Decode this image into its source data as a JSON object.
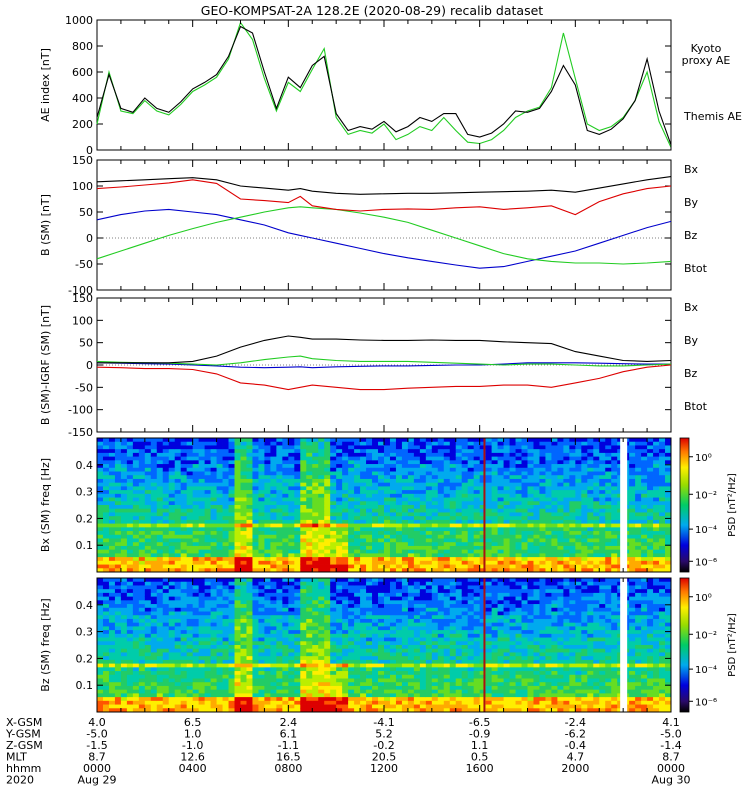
{
  "title": "GEO-KOMPSAT-2A 128.2E (2020-08-29) recalib dataset",
  "colors": {
    "bx": "#0000cc",
    "by": "#22cc22",
    "bz": "#dd0000",
    "btot": "#000000",
    "kyoto": "#22cc22",
    "themis": "#000000"
  },
  "chart_data": [
    {
      "type": "line",
      "name": "ae-panel",
      "ylabel": "AE index [nT]",
      "ylim": [
        0,
        1000
      ],
      "yticks": [
        "0",
        "200",
        "400",
        "600",
        "800",
        "1000"
      ],
      "x_hours": [
        0,
        0.5,
        1,
        1.5,
        2,
        2.5,
        3,
        3.5,
        4,
        4.5,
        5,
        5.5,
        6,
        6.5,
        7,
        7.5,
        8,
        8.5,
        9,
        9.5,
        10,
        10.5,
        11,
        11.5,
        12,
        12.5,
        13,
        13.5,
        14,
        14.5,
        15,
        15.5,
        16,
        16.5,
        17,
        17.5,
        18,
        18.5,
        19,
        19.5,
        20,
        20.5,
        21,
        21.5,
        22,
        22.5,
        23,
        23.5,
        24
      ],
      "series": [
        {
          "name": "Kyoto proxy AE",
          "legend": [
            "Kyoto",
            "proxy AE"
          ],
          "color": "#22cc22",
          "values": [
            200,
            600,
            300,
            280,
            380,
            300,
            270,
            350,
            450,
            500,
            560,
            700,
            980,
            850,
            550,
            300,
            520,
            450,
            620,
            780,
            250,
            120,
            150,
            130,
            200,
            80,
            120,
            180,
            150,
            250,
            150,
            60,
            50,
            80,
            150,
            250,
            300,
            330,
            480,
            900,
            550,
            200,
            150,
            180,
            250,
            380,
            600,
            220,
            20
          ]
        },
        {
          "name": "Themis AE",
          "legend": [
            "Themis AE"
          ],
          "color": "#000000",
          "values": [
            250,
            580,
            320,
            290,
            400,
            320,
            290,
            370,
            470,
            520,
            580,
            720,
            950,
            900,
            600,
            320,
            560,
            480,
            650,
            720,
            280,
            150,
            180,
            160,
            220,
            140,
            180,
            250,
            220,
            280,
            280,
            120,
            100,
            130,
            200,
            300,
            290,
            320,
            450,
            650,
            500,
            150,
            120,
            160,
            240,
            380,
            700,
            300,
            40
          ]
        }
      ]
    },
    {
      "type": "line",
      "name": "b-sm-panel",
      "ylabel": "B (SM) [nT]",
      "ylim": [
        -100,
        150
      ],
      "yticks": [
        "-100",
        "-50",
        "0",
        "50",
        "100",
        "150"
      ],
      "x_hours": [
        0,
        1,
        2,
        3,
        4,
        5,
        6,
        7,
        8,
        8.5,
        9,
        10,
        11,
        12,
        13,
        14,
        15,
        16,
        17,
        18,
        19,
        20,
        21,
        22,
        23,
        24
      ],
      "series": [
        {
          "name": "Bx",
          "legend": [
            "Bx"
          ],
          "color": "#0000cc",
          "values": [
            35,
            45,
            52,
            55,
            50,
            45,
            35,
            25,
            10,
            5,
            0,
            -10,
            -20,
            -30,
            -38,
            -45,
            -52,
            -58,
            -55,
            -45,
            -35,
            -25,
            -10,
            5,
            20,
            32
          ]
        },
        {
          "name": "By",
          "legend": [
            "By"
          ],
          "color": "#22cc22",
          "values": [
            -40,
            -25,
            -10,
            5,
            18,
            30,
            40,
            50,
            58,
            60,
            58,
            55,
            48,
            40,
            30,
            15,
            0,
            -15,
            -30,
            -40,
            -45,
            -48,
            -48,
            -50,
            -48,
            -45
          ]
        },
        {
          "name": "Bz",
          "legend": [
            "Bz"
          ],
          "color": "#dd0000",
          "values": [
            95,
            98,
            102,
            106,
            112,
            105,
            75,
            72,
            68,
            80,
            62,
            55,
            52,
            55,
            56,
            55,
            58,
            60,
            55,
            58,
            62,
            45,
            70,
            85,
            95,
            100
          ]
        },
        {
          "name": "Btot",
          "legend": [
            "Btot"
          ],
          "color": "#000000",
          "values": [
            108,
            110,
            112,
            114,
            116,
            112,
            100,
            96,
            92,
            95,
            90,
            86,
            84,
            85,
            86,
            86,
            87,
            88,
            89,
            90,
            92,
            88,
            96,
            104,
            112,
            118
          ]
        }
      ]
    },
    {
      "type": "line",
      "name": "b-igrf-panel",
      "ylabel": "B (SM)-IGRF (SM) [nT]",
      "ylim": [
        -150,
        150
      ],
      "yticks": [
        "-150",
        "-100",
        "-50",
        "0",
        "50",
        "100",
        "150"
      ],
      "x_hours": [
        0,
        1,
        2,
        3,
        4,
        5,
        6,
        7,
        8,
        8.5,
        9,
        10,
        11,
        12,
        13,
        14,
        15,
        16,
        17,
        18,
        19,
        20,
        21,
        22,
        23,
        24
      ],
      "series": [
        {
          "name": "Bx",
          "legend": [
            "Bx"
          ],
          "color": "#0000cc",
          "values": [
            5,
            4,
            3,
            2,
            0,
            -2,
            -5,
            -6,
            -5,
            -4,
            -6,
            -4,
            -3,
            -2,
            -2,
            -1,
            0,
            0,
            2,
            5,
            5,
            5,
            4,
            3,
            2,
            2
          ]
        },
        {
          "name": "By",
          "legend": [
            "By"
          ],
          "color": "#22cc22",
          "values": [
            8,
            6,
            5,
            4,
            2,
            0,
            5,
            12,
            18,
            20,
            14,
            10,
            8,
            8,
            8,
            6,
            4,
            2,
            0,
            2,
            2,
            0,
            -2,
            -2,
            0,
            2
          ]
        },
        {
          "name": "Bz",
          "legend": [
            "Bz"
          ],
          "color": "#dd0000",
          "values": [
            -5,
            -6,
            -8,
            -8,
            -10,
            -20,
            -40,
            -45,
            -55,
            -50,
            -45,
            -50,
            -55,
            -55,
            -52,
            -50,
            -48,
            -48,
            -45,
            -45,
            -50,
            -40,
            -30,
            -15,
            -5,
            0
          ]
        },
        {
          "name": "Btot",
          "legend": [
            "Btot"
          ],
          "color": "#000000",
          "values": [
            5,
            5,
            5,
            5,
            8,
            20,
            40,
            55,
            65,
            62,
            58,
            58,
            56,
            55,
            55,
            56,
            55,
            55,
            52,
            50,
            48,
            30,
            20,
            10,
            8,
            10
          ]
        }
      ]
    },
    {
      "type": "heatmap",
      "name": "bx-spectrogram",
      "ylabel": "Bx (SM) freq [Hz]",
      "ylim": [
        0,
        0.5
      ],
      "yticks": [
        "0.1",
        "0.2",
        "0.3",
        "0.4"
      ],
      "colorbar_label": "PSD [nT²/Hz]",
      "colorbar_ticks": [
        "10⁰",
        "10⁻²",
        "10⁻⁴",
        "10⁻⁶"
      ],
      "enhanced_band_hz": 0.17,
      "data_gap_hour": 22
    },
    {
      "type": "heatmap",
      "name": "bz-spectrogram",
      "ylabel": "Bz (SM) freq [Hz]",
      "ylim": [
        0,
        0.5
      ],
      "yticks": [
        "0.1",
        "0.2",
        "0.3",
        "0.4"
      ],
      "colorbar_label": "PSD [nT²/Hz]",
      "colorbar_ticks": [
        "10⁰",
        "10⁻²",
        "10⁻⁴",
        "10⁻⁶"
      ],
      "enhanced_band_hz": 0.17,
      "data_gap_hour": 22
    }
  ],
  "ephemeris": {
    "rows": [
      {
        "label": "X-GSM",
        "values": [
          "4.0",
          "6.5",
          "2.4",
          "-4.1",
          "-6.5",
          "-2.4",
          "4.1"
        ]
      },
      {
        "label": "Y-GSM",
        "values": [
          "-5.0",
          "1.0",
          "6.1",
          "5.2",
          "-0.9",
          "-6.2",
          "-5.0"
        ]
      },
      {
        "label": "Z-GSM",
        "values": [
          "-1.5",
          "-1.0",
          "-1.1",
          "-0.2",
          "1.1",
          "-0.4",
          "-1.4"
        ]
      },
      {
        "label": "MLT",
        "values": [
          "8.7",
          "12.6",
          "16.5",
          "20.5",
          "0.5",
          "4.7",
          "8.7"
        ]
      },
      {
        "label": "hhmm",
        "values": [
          "0000",
          "0400",
          "0800",
          "1200",
          "1600",
          "2000",
          "0000"
        ]
      },
      {
        "label": "2020",
        "values": [
          "Aug 29",
          "",
          "",
          "",
          "",
          "",
          "Aug 30"
        ]
      }
    ]
  }
}
